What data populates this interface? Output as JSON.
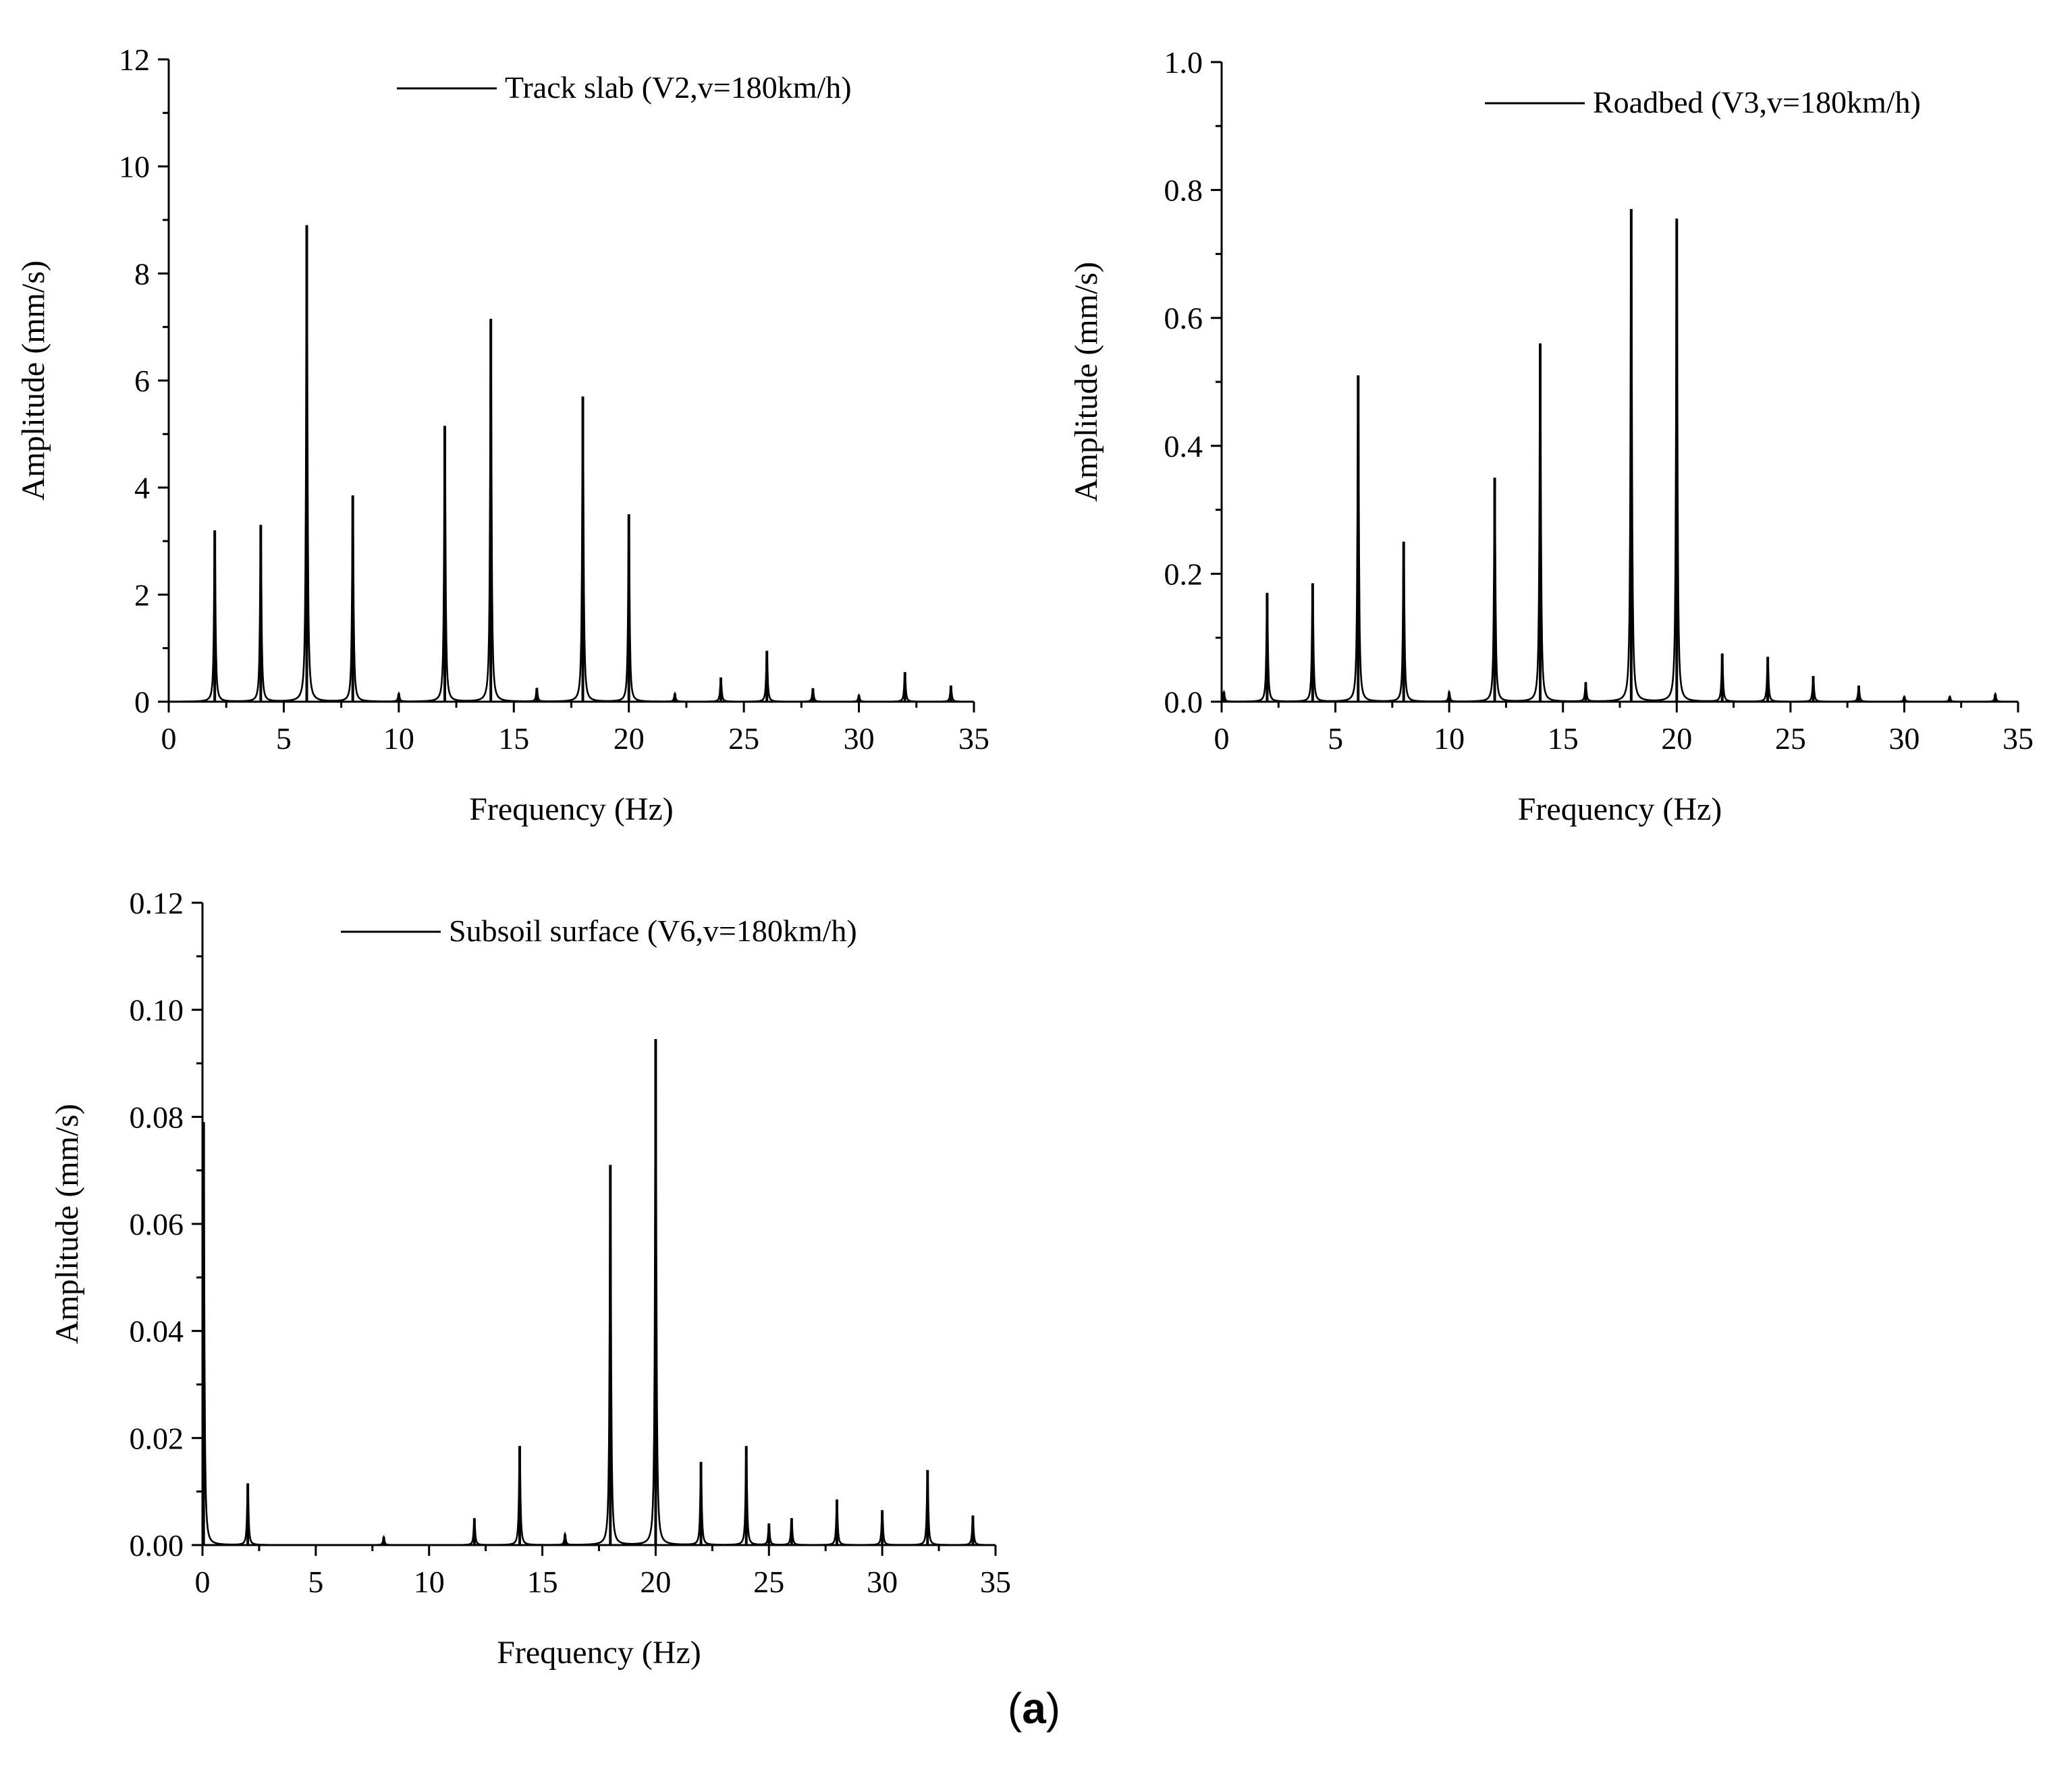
{
  "panel_label": {
    "open": "(",
    "letter": "a",
    "close": ")"
  },
  "chart_data": [
    {
      "type": "line",
      "xlabel": "Frequency (Hz)",
      "ylabel": "Amplitude (mm/s)",
      "xlim": [
        0,
        35
      ],
      "ylim": [
        0,
        12
      ],
      "xticks": [
        0,
        5,
        10,
        15,
        20,
        25,
        30,
        35
      ],
      "yticks": [
        0,
        2,
        4,
        6,
        8,
        10,
        12
      ],
      "ytick_decimals": 0,
      "grid": false,
      "legend_position": "top-right",
      "series": [
        {
          "name": "Track slab (V2,v=180km/h)",
          "color": "#000000",
          "peaks": [
            {
              "f": 2,
              "a": 3.2
            },
            {
              "f": 4,
              "a": 3.3
            },
            {
              "f": 6,
              "a": 8.9
            },
            {
              "f": 8,
              "a": 3.85
            },
            {
              "f": 10,
              "a": 0.15
            },
            {
              "f": 12,
              "a": 5.15
            },
            {
              "f": 14,
              "a": 7.15
            },
            {
              "f": 16,
              "a": 0.25
            },
            {
              "f": 18,
              "a": 5.7
            },
            {
              "f": 20,
              "a": 3.5
            },
            {
              "f": 22,
              "a": 0.15
            },
            {
              "f": 24,
              "a": 0.45
            },
            {
              "f": 26,
              "a": 0.95
            },
            {
              "f": 28,
              "a": 0.25
            },
            {
              "f": 30,
              "a": 0.12
            },
            {
              "f": 32,
              "a": 0.55
            },
            {
              "f": 34,
              "a": 0.3
            }
          ]
        }
      ]
    },
    {
      "type": "line",
      "xlabel": "Frequency (Hz)",
      "ylabel": "Amplitude (mm/s)",
      "xlim": [
        0,
        35
      ],
      "ylim": [
        0,
        1.0
      ],
      "xticks": [
        0,
        5,
        10,
        15,
        20,
        25,
        30,
        35
      ],
      "yticks": [
        0.0,
        0.2,
        0.4,
        0.6,
        0.8,
        1.0
      ],
      "ytick_decimals": 1,
      "grid": false,
      "legend_position": "top-right",
      "series": [
        {
          "name": "Roadbed (V3,v=180km/h)",
          "color": "#000000",
          "peaks": [
            {
              "f": 0.1,
              "a": 0.015
            },
            {
              "f": 2,
              "a": 0.17
            },
            {
              "f": 4,
              "a": 0.185
            },
            {
              "f": 6,
              "a": 0.51
            },
            {
              "f": 8,
              "a": 0.25
            },
            {
              "f": 10,
              "a": 0.015
            },
            {
              "f": 12,
              "a": 0.35
            },
            {
              "f": 14,
              "a": 0.56
            },
            {
              "f": 16,
              "a": 0.03
            },
            {
              "f": 18,
              "a": 0.77
            },
            {
              "f": 20,
              "a": 0.755
            },
            {
              "f": 22,
              "a": 0.075
            },
            {
              "f": 24,
              "a": 0.07
            },
            {
              "f": 26,
              "a": 0.04
            },
            {
              "f": 28,
              "a": 0.025
            },
            {
              "f": 30,
              "a": 0.008
            },
            {
              "f": 32,
              "a": 0.008
            },
            {
              "f": 34,
              "a": 0.012
            }
          ]
        }
      ]
    },
    {
      "type": "line",
      "xlabel": "Frequency (Hz)",
      "ylabel": "Amplitude (mm/s)",
      "xlim": [
        0,
        35
      ],
      "ylim": [
        0,
        0.12
      ],
      "xticks": [
        0,
        5,
        10,
        15,
        20,
        25,
        30,
        35
      ],
      "yticks": [
        0.0,
        0.02,
        0.04,
        0.06,
        0.08,
        0.1,
        0.12
      ],
      "ytick_decimals": 2,
      "grid": false,
      "legend_position": "top-right",
      "series": [
        {
          "name": "Subsoil surface (V6,v=180km/h)",
          "color": "#000000",
          "peaks": [
            {
              "f": 0.05,
              "a": 0.079
            },
            {
              "f": 2,
              "a": 0.0115
            },
            {
              "f": 8,
              "a": 0.0015
            },
            {
              "f": 12,
              "a": 0.005
            },
            {
              "f": 14,
              "a": 0.0185
            },
            {
              "f": 16,
              "a": 0.002
            },
            {
              "f": 18,
              "a": 0.071
            },
            {
              "f": 20,
              "a": 0.0945
            },
            {
              "f": 22,
              "a": 0.0155
            },
            {
              "f": 24,
              "a": 0.0185
            },
            {
              "f": 25,
              "a": 0.004
            },
            {
              "f": 26,
              "a": 0.005
            },
            {
              "f": 28,
              "a": 0.0085
            },
            {
              "f": 30,
              "a": 0.0065
            },
            {
              "f": 32,
              "a": 0.014
            },
            {
              "f": 34,
              "a": 0.0055
            }
          ]
        }
      ]
    }
  ]
}
